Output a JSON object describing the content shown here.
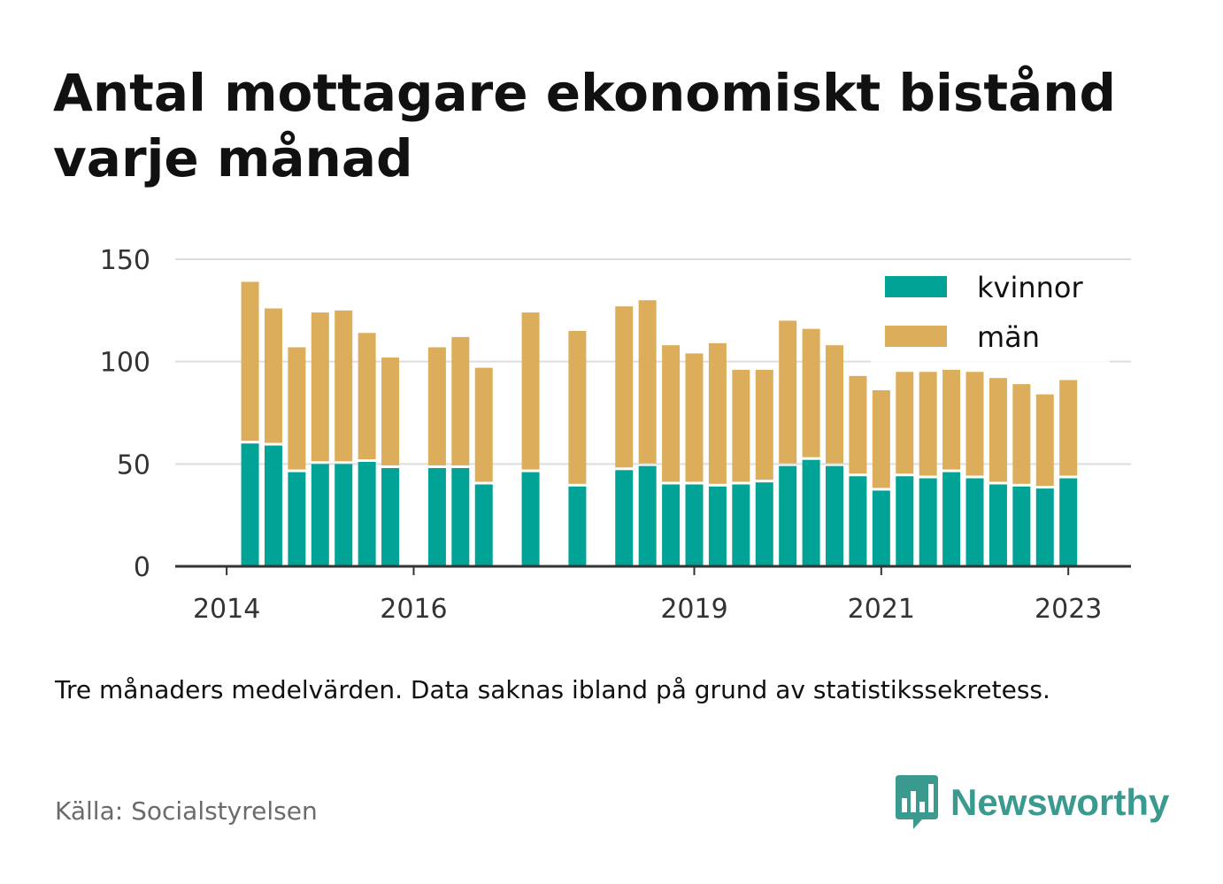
{
  "title": "Antal mottagare ekonomiskt bistånd varje månad",
  "note": "Tre månaders medelvärden. Data saknas ibland på grund av statistikssekretess.",
  "source": "Källa: Socialstyrelsen",
  "brand": {
    "name": "Newsworthy",
    "icon": "bar-chart-speech-bubble-icon",
    "color": "#3a9a8f"
  },
  "chart_data": {
    "type": "bar",
    "stacked": true,
    "x_unit": "year (quarterly bars)",
    "x": [
      2014.25,
      2014.5,
      2014.75,
      2015.0,
      2015.25,
      2015.5,
      2015.75,
      2016.25,
      2016.5,
      2016.75,
      2017.25,
      2017.75,
      2018.25,
      2018.5,
      2018.75,
      2019.0,
      2019.25,
      2019.5,
      2019.75,
      2020.0,
      2020.25,
      2020.5,
      2020.75,
      2021.0,
      2021.25,
      2021.5,
      2021.75,
      2022.0,
      2022.25,
      2022.5,
      2022.75,
      2023.0
    ],
    "series": [
      {
        "name": "kvinnor",
        "color": "#00a395",
        "values": [
          60,
          59,
          46,
          50,
          50,
          51,
          48,
          48,
          48,
          40,
          46,
          39,
          47,
          49,
          40,
          40,
          39,
          40,
          41,
          49,
          52,
          49,
          44,
          37,
          44,
          43,
          46,
          43,
          40,
          39,
          38,
          43
        ]
      },
      {
        "name": "män",
        "color": "#dcae5c",
        "values": [
          79,
          67,
          61,
          74,
          75,
          63,
          54,
          59,
          64,
          57,
          78,
          76,
          80,
          81,
          68,
          64,
          70,
          56,
          55,
          71,
          64,
          59,
          49,
          49,
          51,
          52,
          50,
          52,
          52,
          50,
          46,
          48
        ]
      }
    ],
    "xticks": [
      2014,
      2016,
      2019,
      2021,
      2023
    ],
    "xlim": [
      2013.45,
      2023.67
    ],
    "yticks": [
      0,
      50,
      100,
      150
    ],
    "ylim": [
      0,
      150
    ],
    "grid": "horizontal",
    "legend_position": "top-right"
  }
}
